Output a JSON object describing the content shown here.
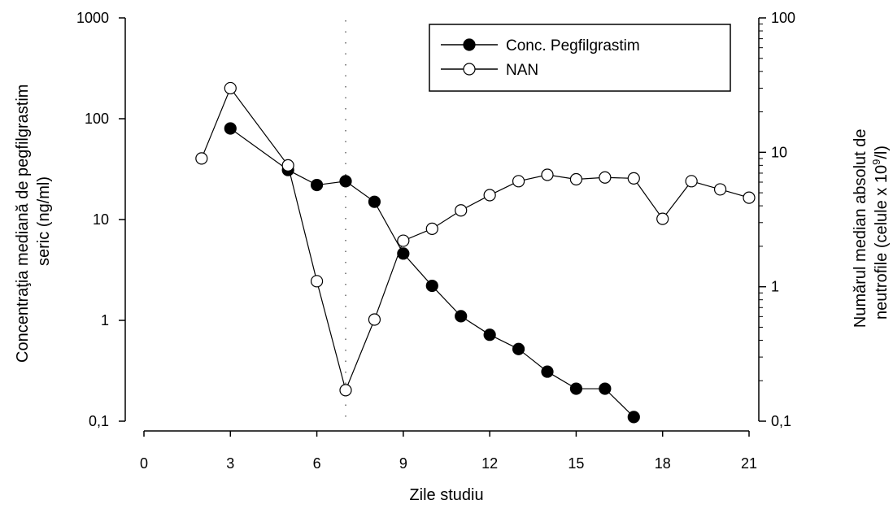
{
  "chart_data": {
    "type": "line",
    "xlabel": "Zile studiu",
    "ylabel_left_line1": "Concentraţia mediană de pegfilgrastim",
    "ylabel_left_line2": "seric (ng/ml)",
    "ylabel_right_line1": "Numărul median absolut de",
    "ylabel_right_line2": "neutrofile (celule x 10",
    "ylabel_right_sup": "9",
    "ylabel_right_end": "/l)",
    "x_ticks": [
      0,
      3,
      6,
      9,
      12,
      15,
      18,
      21
    ],
    "x_tick_labels": [
      "0",
      "3",
      "6",
      "9",
      "12",
      "15",
      "18",
      "21"
    ],
    "xlim": [
      0,
      21
    ],
    "y_left_scale": "log",
    "y_left_ticks": [
      0.1,
      1,
      10,
      100,
      1000
    ],
    "y_left_tick_labels": [
      "0,1",
      "1",
      "10",
      "100",
      "1000"
    ],
    "y_left_lim": [
      0.1,
      1000
    ],
    "y_right_scale": "log",
    "y_right_ticks": [
      0.1,
      1,
      10,
      100
    ],
    "y_right_tick_labels": [
      "0,1",
      "1",
      "10",
      "100"
    ],
    "y_right_lim": [
      0.1,
      100
    ],
    "reference_line_x": 7,
    "grid": false,
    "legend_position": "top-right",
    "series": [
      {
        "name": "Conc. Pegfilgrastim",
        "axis": "left",
        "marker": "filled-circle",
        "x": [
          3,
          5,
          6,
          7,
          8,
          9,
          10,
          11,
          12,
          13,
          14,
          15,
          16,
          17
        ],
        "values": [
          80,
          31,
          22,
          24,
          15,
          4.6,
          2.2,
          1.1,
          0.72,
          0.52,
          0.31,
          0.21,
          0.21,
          0.11
        ]
      },
      {
        "name": "NAN",
        "axis": "right",
        "marker": "open-circle",
        "x": [
          2,
          3,
          5,
          6,
          7,
          8,
          9,
          10,
          11,
          12,
          13,
          14,
          15,
          16,
          17,
          18,
          19,
          20,
          21
        ],
        "values": [
          9,
          30,
          8,
          1.1,
          0.17,
          0.57,
          2.2,
          2.7,
          3.7,
          4.8,
          6.1,
          6.8,
          6.3,
          6.5,
          6.4,
          3.2,
          6.1,
          5.3,
          4.6
        ]
      }
    ],
    "colors": {
      "line": "#000000",
      "filled_marker": "#000000",
      "open_marker_fill": "#ffffff",
      "reference_line": "#666666"
    }
  }
}
